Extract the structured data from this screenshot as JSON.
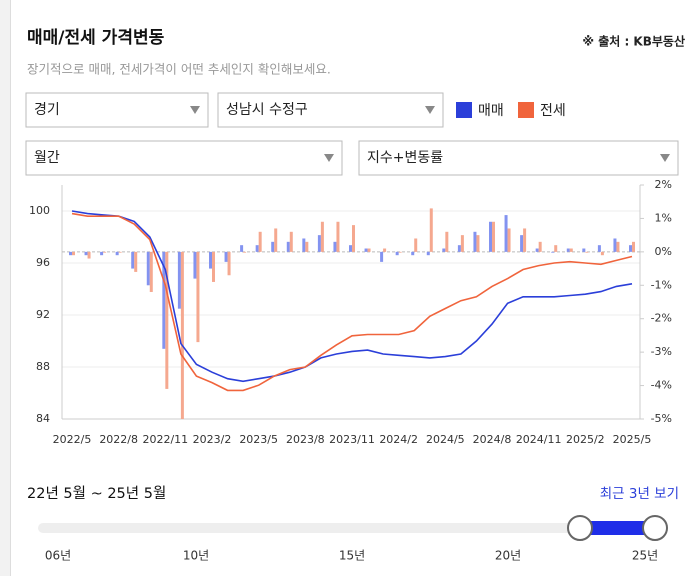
{
  "header": {
    "title": "매매/전세 가격변동",
    "source": "※ 출처 : KB부동산",
    "subtitle": "장기적으로 매매, 전세가격이 어떤 추세인지 확인해보세요."
  },
  "filters": {
    "region": "경기",
    "district": "성남시 수정구",
    "period": "월간",
    "view": "지수+변동률"
  },
  "chart_data": {
    "type": "combo",
    "categories": [
      "2022/5",
      null,
      null,
      "2022/8",
      null,
      null,
      "2022/11",
      null,
      null,
      "2023/2",
      null,
      null,
      "2023/5",
      null,
      null,
      "2023/8",
      null,
      null,
      "2023/11",
      null,
      null,
      "2024/2",
      null,
      null,
      "2024/5",
      null,
      null,
      "2024/8",
      null,
      null,
      "2024/11",
      null,
      null,
      "2025/2",
      null,
      null,
      "2025/5"
    ],
    "series": [
      {
        "name": "매매",
        "color": "#2b3fd9",
        "bar_color": "#8393f0",
        "values": [
          100.0,
          99.8,
          99.7,
          99.6,
          99.2,
          98.0,
          95.5,
          89.8,
          88.2,
          87.6,
          87.1,
          86.9,
          87.1,
          87.3,
          87.6,
          88.0,
          88.7,
          89.0,
          89.2,
          89.3,
          89.0,
          88.9,
          88.8,
          88.7,
          88.8,
          89.0,
          90.0,
          91.3,
          92.9,
          93.4,
          93.4,
          93.4,
          93.5,
          93.6,
          93.8,
          94.2,
          94.4
        ],
        "changes": [
          -0.1,
          -0.1,
          -0.1,
          -0.1,
          -0.5,
          -1.0,
          -2.9,
          -1.7,
          -0.8,
          -0.5,
          -0.3,
          0.2,
          0.2,
          0.3,
          0.3,
          0.4,
          0.5,
          0.3,
          0.2,
          0.1,
          -0.3,
          -0.1,
          -0.1,
          -0.1,
          0.1,
          0.2,
          0.6,
          0.9,
          1.1,
          0.5,
          0.1,
          0.0,
          0.1,
          0.1,
          0.2,
          0.4,
          0.2
        ]
      },
      {
        "name": "전세",
        "color": "#f0643c",
        "bar_color": "#f5a88f",
        "values": [
          99.8,
          99.6,
          99.6,
          99.6,
          99.0,
          97.8,
          94.3,
          89.0,
          87.3,
          86.8,
          86.2,
          86.2,
          86.6,
          87.3,
          87.8,
          88.0,
          88.9,
          89.7,
          90.4,
          90.5,
          90.5,
          90.5,
          90.8,
          91.9,
          92.5,
          93.1,
          93.4,
          94.2,
          94.8,
          95.5,
          95.8,
          96.0,
          96.1,
          96.0,
          95.9,
          96.2,
          96.5
        ],
        "changes": [
          -0.1,
          -0.2,
          0.0,
          0.0,
          -0.6,
          -1.2,
          -4.1,
          -5.0,
          -2.7,
          -0.9,
          -0.7,
          0.0,
          0.6,
          0.7,
          0.6,
          0.3,
          0.9,
          0.9,
          0.8,
          0.1,
          0.1,
          0.0,
          0.4,
          1.3,
          0.6,
          0.5,
          0.5,
          0.9,
          0.7,
          0.7,
          0.3,
          0.2,
          0.1,
          0.0,
          -0.1,
          0.3,
          0.3
        ]
      }
    ],
    "ylim": [
      84,
      102
    ],
    "yticks": [
      84,
      88,
      92,
      96,
      100
    ],
    "y2lim": [
      -5,
      2
    ],
    "y2ticks": [
      {
        "value": 2,
        "label": "2%"
      },
      {
        "value": 1,
        "label": "1%"
      },
      {
        "value": 0,
        "label": "0%"
      },
      {
        "value": -1,
        "label": "-1%"
      },
      {
        "value": -2,
        "label": "-2%"
      },
      {
        "value": -3,
        "label": "-3%"
      },
      {
        "value": -4,
        "label": "-4%"
      },
      {
        "value": -5,
        "label": "-5%"
      }
    ],
    "grid": true
  },
  "range": {
    "label": "22년 5월 ~ 25년 5월",
    "button": "최근 3년 보기",
    "years": [
      "06년",
      "10년",
      "15년",
      "20년",
      "25년"
    ]
  }
}
